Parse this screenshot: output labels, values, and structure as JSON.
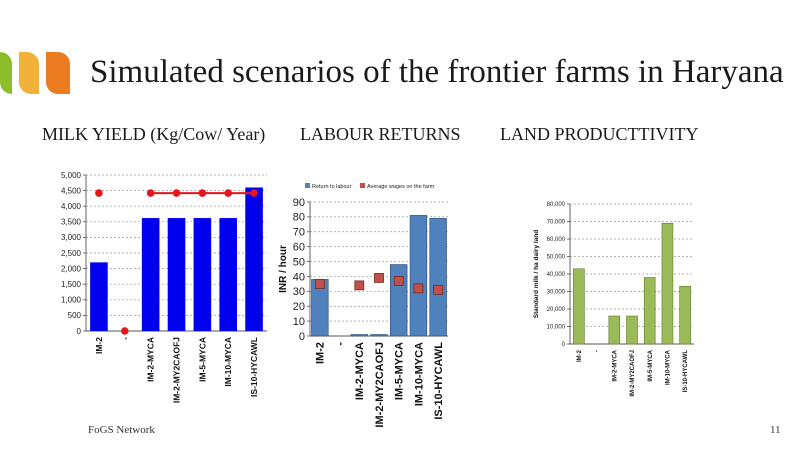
{
  "slide": {
    "title": "Simulated scenarios of the frontier farms in Haryana",
    "subheads": [
      "MILK YIELD (Kg/Cow/ Year)",
      "LABOUR RETURNS",
      "LAND PRODUCTTIVITY"
    ],
    "footer": "FoGS Network",
    "page_number": "11",
    "colors": {
      "green": "#8cbd2b",
      "yellow": "#f2b23a",
      "orange": "#ea7b1e"
    }
  },
  "chart_data": [
    {
      "type": "bar",
      "categories": [
        "IM-2",
        "-",
        "IM-2-MYCA",
        "IM-2-MY2CAOFJ",
        "IM-5-MYCA",
        "IM-10-MYCA",
        "IS-10-HYCAWL"
      ],
      "series": [
        {
          "values": [
            2200,
            0,
            3620,
            3620,
            3620,
            3620,
            4600
          ],
          "color": "#0000ee"
        },
        {
          "values": [
            4420,
            0,
            4420,
            4420,
            4420,
            4420,
            4420
          ],
          "color": "#e8141a"
        }
      ],
      "ylim": [
        0,
        5000
      ],
      "yticks": [
        0,
        500,
        1000,
        1500,
        2000,
        2500,
        3000,
        3500,
        4000,
        4500,
        5000
      ],
      "ytick_labels": [
        "0",
        "500",
        "1,000",
        "1,500",
        "2,000",
        "2,500",
        "3,000",
        "3,500",
        "4,000",
        "4,500",
        "5,000"
      ],
      "grid": true
    },
    {
      "type": "bar",
      "categories": [
        "IM-2",
        "-",
        "IM-2-MYCA",
        "IM-2-MY2CAOFJ",
        "IM-5-MYCA",
        "IM-10-MYCA",
        "IS-10-HYCAWL"
      ],
      "series": [
        {
          "name": "Return to labour",
          "values": [
            38,
            0,
            1,
            1,
            48,
            81,
            79
          ],
          "color": "#4f81bd"
        },
        {
          "name": "Average wages on the farm",
          "values": [
            35,
            null,
            34,
            39,
            37,
            32,
            31
          ],
          "color": "#c0504d"
        }
      ],
      "ylabel": "INR / hour",
      "ylim": [
        0,
        90
      ],
      "yticks": [
        0,
        10,
        20,
        30,
        40,
        50,
        60,
        70,
        80,
        90
      ],
      "legend_position": "top",
      "grid": true
    },
    {
      "type": "bar",
      "categories": [
        "IM-2",
        "-",
        "IM-2-MYCA",
        "IM-2-MY2CAOFJ",
        "IM-5-MYCA",
        "IM-10-MYCA",
        "IS-10-HYCAWL"
      ],
      "series": [
        {
          "values": [
            43000,
            0,
            16000,
            16000,
            38000,
            69000,
            33000
          ],
          "color": "#9bbb59"
        }
      ],
      "ylabel": "Standard milk / ha dairy land",
      "ylim": [
        0,
        80000
      ],
      "yticks": [
        0,
        10000,
        20000,
        30000,
        40000,
        50000,
        60000,
        70000,
        80000
      ],
      "ytick_labels": [
        "0",
        "10,000",
        "20,000",
        "30,000",
        "40,000",
        "50,000",
        "60,000",
        "70,000",
        "80,000"
      ],
      "grid": true
    }
  ]
}
